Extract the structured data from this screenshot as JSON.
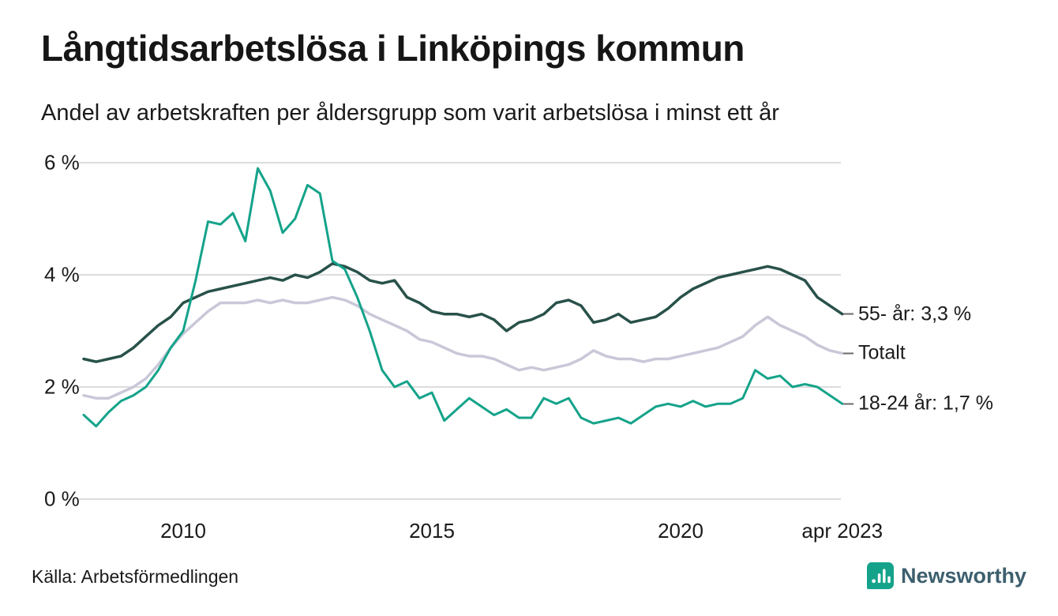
{
  "title": "Långtidsarbetslösa i Linköpings kommun",
  "subtitle": "Andel av arbetskraften per åldersgrupp som varit arbetslösa i minst ett år",
  "source": "Källa: Arbetsförmedlingen",
  "brand": {
    "name": "Newsworthy",
    "icon": "bar-chart-bubble-icon",
    "icon_color": "#14a38a",
    "text_color": "#3d5f6e"
  },
  "chart_data": {
    "type": "line",
    "title": "Långtidsarbetslösa i Linköpings kommun",
    "subtitle": "Andel av arbetskraften per åldersgrupp som varit arbetslösa i minst ett år",
    "x_unit": "decimal_year",
    "x_range": [
      2008,
      2023.25
    ],
    "ylim": [
      0,
      6.4
    ],
    "grid": true,
    "grid_color": "#dcdcdc",
    "text_color": "#1a1a1a",
    "legend_position": "right-end-labels",
    "y_ticks": [
      {
        "value": 6,
        "label": "6 %"
      },
      {
        "value": 4,
        "label": "4 %"
      },
      {
        "value": 2,
        "label": "2 %"
      },
      {
        "value": 0,
        "label": "0 %"
      }
    ],
    "x_ticks": [
      {
        "value": 2010,
        "label": "2010"
      },
      {
        "value": 2015,
        "label": "2015"
      },
      {
        "value": 2020,
        "label": "2020"
      },
      {
        "value": 2023.25,
        "label": "apr 2023"
      }
    ],
    "x": [
      2008,
      2008.25,
      2008.5,
      2008.75,
      2009,
      2009.25,
      2009.5,
      2009.75,
      2010,
      2010.25,
      2010.5,
      2010.75,
      2011,
      2011.25,
      2011.5,
      2011.75,
      2012,
      2012.25,
      2012.5,
      2012.75,
      2013,
      2013.25,
      2013.5,
      2013.75,
      2014,
      2014.25,
      2014.5,
      2014.75,
      2015,
      2015.25,
      2015.5,
      2015.75,
      2016,
      2016.25,
      2016.5,
      2016.75,
      2017,
      2017.25,
      2017.5,
      2017.75,
      2018,
      2018.25,
      2018.5,
      2018.75,
      2019,
      2019.25,
      2019.5,
      2019.75,
      2020,
      2020.25,
      2020.5,
      2020.75,
      2021,
      2021.25,
      2021.5,
      2021.75,
      2022,
      2022.25,
      2022.5,
      2022.75,
      2023,
      2023.25
    ],
    "series": [
      {
        "name": "55- år",
        "end_label": "55- år: 3,3 %",
        "end_value_text": "3,3 %",
        "color": "#28514a",
        "stroke_width": 3.5,
        "values": [
          2.5,
          2.45,
          2.5,
          2.55,
          2.7,
          2.9,
          3.1,
          3.25,
          3.5,
          3.6,
          3.7,
          3.75,
          3.8,
          3.85,
          3.9,
          3.95,
          3.9,
          4.0,
          3.95,
          4.05,
          4.2,
          4.15,
          4.05,
          3.9,
          3.85,
          3.9,
          3.6,
          3.5,
          3.35,
          3.3,
          3.3,
          3.25,
          3.3,
          3.2,
          3.0,
          3.15,
          3.2,
          3.3,
          3.5,
          3.55,
          3.45,
          3.15,
          3.2,
          3.3,
          3.15,
          3.2,
          3.25,
          3.4,
          3.6,
          3.75,
          3.85,
          3.95,
          4.0,
          4.05,
          4.1,
          4.15,
          4.1,
          4.0,
          3.9,
          3.6,
          3.45,
          3.3
        ]
      },
      {
        "name": "Totalt",
        "end_label": "Totalt",
        "end_value_text": "",
        "color": "#c9c8d8",
        "stroke_width": 3.5,
        "values": [
          1.85,
          1.8,
          1.8,
          1.9,
          2.0,
          2.15,
          2.4,
          2.7,
          2.95,
          3.15,
          3.35,
          3.5,
          3.5,
          3.5,
          3.55,
          3.5,
          3.55,
          3.5,
          3.5,
          3.55,
          3.6,
          3.55,
          3.45,
          3.3,
          3.2,
          3.1,
          3.0,
          2.85,
          2.8,
          2.7,
          2.6,
          2.55,
          2.55,
          2.5,
          2.4,
          2.3,
          2.35,
          2.3,
          2.35,
          2.4,
          2.5,
          2.65,
          2.55,
          2.5,
          2.5,
          2.45,
          2.5,
          2.5,
          2.55,
          2.6,
          2.65,
          2.7,
          2.8,
          2.9,
          3.1,
          3.25,
          3.1,
          3.0,
          2.9,
          2.75,
          2.65,
          2.6
        ]
      },
      {
        "name": "18-24 år",
        "end_label": "18-24 år: 1,7 %",
        "end_value_text": "1,7 %",
        "color": "#14a38a",
        "stroke_width": 3,
        "values": [
          1.5,
          1.3,
          1.55,
          1.75,
          1.85,
          2.0,
          2.3,
          2.7,
          3.0,
          3.9,
          4.95,
          4.9,
          5.1,
          4.6,
          5.9,
          5.5,
          4.75,
          5.0,
          5.6,
          5.45,
          4.25,
          4.1,
          3.6,
          3.0,
          2.3,
          2.0,
          2.1,
          1.8,
          1.9,
          1.4,
          1.6,
          1.8,
          1.65,
          1.5,
          1.6,
          1.45,
          1.45,
          1.8,
          1.7,
          1.8,
          1.45,
          1.35,
          1.4,
          1.45,
          1.35,
          1.5,
          1.65,
          1.7,
          1.65,
          1.75,
          1.65,
          1.7,
          1.7,
          1.8,
          2.3,
          2.15,
          2.2,
          2.0,
          2.05,
          2.0,
          1.85,
          1.7
        ]
      }
    ]
  }
}
